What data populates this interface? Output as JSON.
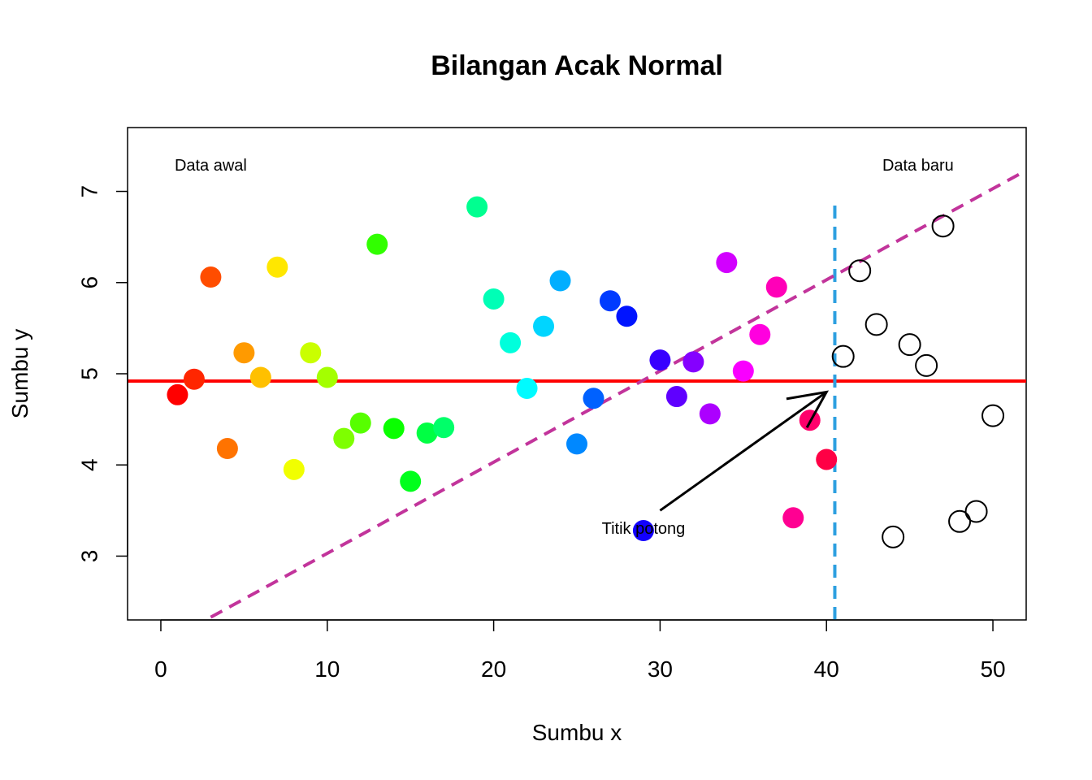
{
  "chart_data": {
    "type": "scatter",
    "title": "Bilangan Acak Normal",
    "xlabel": "Sumbu x",
    "ylabel": "Sumbu y",
    "xlim": [
      -2,
      52
    ],
    "ylim": [
      2.3,
      7.7
    ],
    "xticks": [
      0,
      10,
      20,
      30,
      40,
      50
    ],
    "yticks": [
      3,
      4,
      5,
      6,
      7
    ],
    "grid": false,
    "series": [
      {
        "style": "filled-rainbow",
        "points": [
          {
            "x": 1,
            "y": 4.77
          },
          {
            "x": 2,
            "y": 4.94
          },
          {
            "x": 3,
            "y": 6.06
          },
          {
            "x": 4,
            "y": 4.18
          },
          {
            "x": 5,
            "y": 5.23
          },
          {
            "x": 6,
            "y": 4.96
          },
          {
            "x": 7,
            "y": 6.17
          },
          {
            "x": 8,
            "y": 3.95
          },
          {
            "x": 9,
            "y": 5.23
          },
          {
            "x": 10,
            "y": 4.96
          },
          {
            "x": 11,
            "y": 4.29
          },
          {
            "x": 12,
            "y": 4.46
          },
          {
            "x": 13,
            "y": 6.42
          },
          {
            "x": 14,
            "y": 4.4
          },
          {
            "x": 15,
            "y": 3.82
          },
          {
            "x": 16,
            "y": 4.35
          },
          {
            "x": 17,
            "y": 4.41
          },
          {
            "x": 19,
            "y": 6.83
          },
          {
            "x": 20,
            "y": 5.82
          },
          {
            "x": 21,
            "y": 5.34
          },
          {
            "x": 22,
            "y": 4.84
          },
          {
            "x": 23,
            "y": 5.52
          },
          {
            "x": 24,
            "y": 6.02
          },
          {
            "x": 25,
            "y": 4.23
          },
          {
            "x": 26,
            "y": 4.73
          },
          {
            "x": 27,
            "y": 5.8
          },
          {
            "x": 28,
            "y": 5.63
          },
          {
            "x": 29,
            "y": 3.28
          },
          {
            "x": 30,
            "y": 5.15
          },
          {
            "x": 31,
            "y": 4.75
          },
          {
            "x": 32,
            "y": 5.13
          },
          {
            "x": 33,
            "y": 4.56
          },
          {
            "x": 34,
            "y": 6.22
          },
          {
            "x": 35,
            "y": 5.03
          },
          {
            "x": 36,
            "y": 5.43
          },
          {
            "x": 37,
            "y": 5.95
          },
          {
            "x": 38,
            "y": 3.42
          },
          {
            "x": 39,
            "y": 4.49
          },
          {
            "x": 40,
            "y": 4.06
          }
        ]
      },
      {
        "style": "open-black",
        "points": [
          {
            "x": 41,
            "y": 5.19
          },
          {
            "x": 42,
            "y": 6.13
          },
          {
            "x": 43,
            "y": 5.54
          },
          {
            "x": 44,
            "y": 3.21
          },
          {
            "x": 45,
            "y": 5.32
          },
          {
            "x": 46,
            "y": 5.09
          },
          {
            "x": 47,
            "y": 6.62
          },
          {
            "x": 48,
            "y": 3.38
          },
          {
            "x": 49,
            "y": 3.49
          },
          {
            "x": 50,
            "y": 4.54
          }
        ]
      }
    ],
    "lines": [
      {
        "kind": "horizontal",
        "y": 4.92,
        "color": "#ff0000",
        "dash": "solid"
      },
      {
        "kind": "vertical",
        "x": 40.5,
        "y_from": 2.3,
        "y_to": 6.85,
        "color": "#2d9fe0",
        "dash": "dashed"
      },
      {
        "kind": "regression",
        "intercept": 2.03,
        "slope": 0.1,
        "x_from": 3,
        "x_to": 51.6,
        "color": "#c2349b",
        "dash": "dashed"
      }
    ],
    "annotations": [
      {
        "text": "Data awal",
        "x": 3,
        "y": 7.28
      },
      {
        "text": "Data baru",
        "x": 45.5,
        "y": 7.28
      },
      {
        "text": "Titik potong",
        "x": 29,
        "y": 3.3
      }
    ],
    "arrow": {
      "from": {
        "x": 30,
        "y": 3.5
      },
      "to": {
        "x": 40,
        "y": 4.8
      },
      "color": "#000000"
    }
  }
}
